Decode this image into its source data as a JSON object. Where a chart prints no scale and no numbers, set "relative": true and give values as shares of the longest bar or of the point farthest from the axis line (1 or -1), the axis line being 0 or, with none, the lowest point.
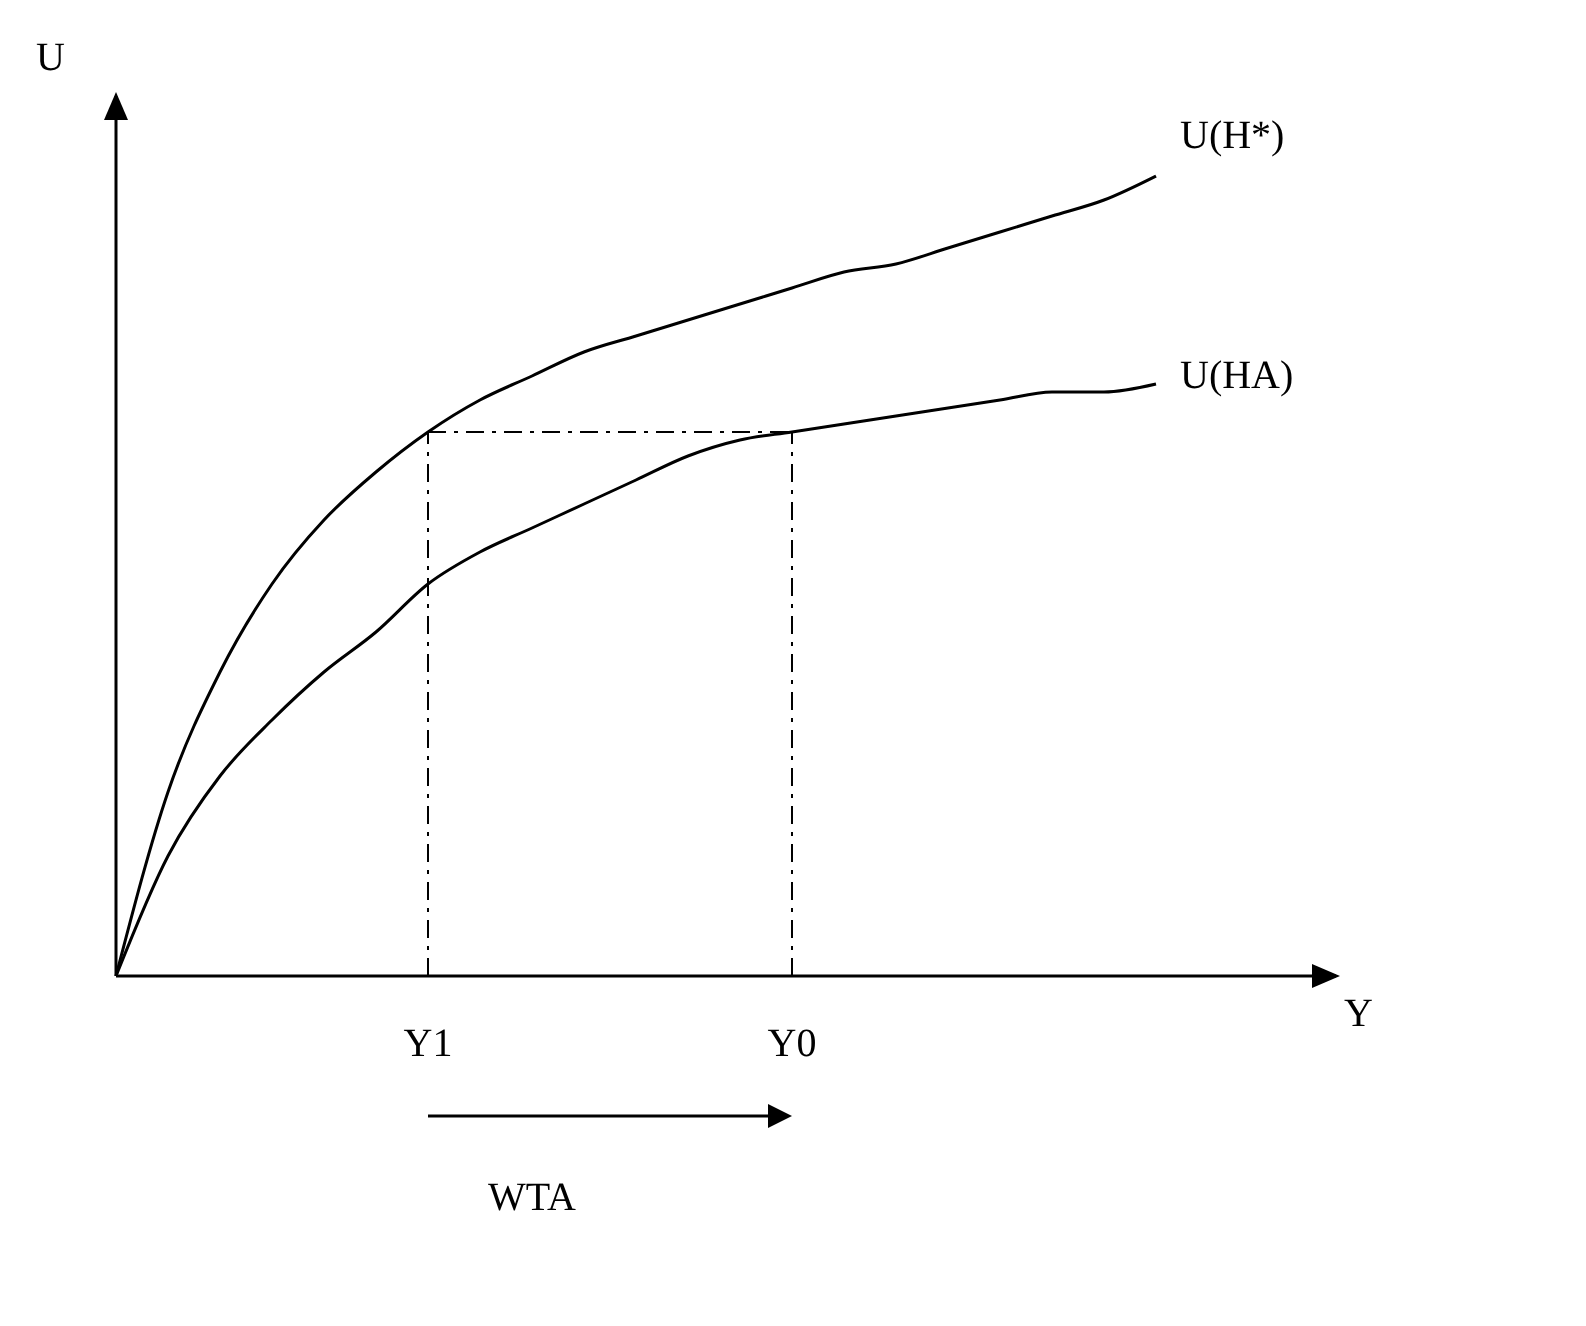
{
  "chart_data": {
    "type": "line",
    "relative": true,
    "xlabel": "Y",
    "ylabel": "U",
    "legend": false,
    "marker": "none",
    "categories": [
      null,
      null,
      null,
      null,
      null,
      null,
      "Y1",
      null,
      null,
      null,
      null,
      null,
      null,
      "Y0",
      null,
      null,
      null,
      null,
      null,
      null,
      null
    ],
    "series": [
      {
        "name": "U(H*)",
        "color": "#000000",
        "values": [
          0,
          0.23,
          0.38,
          0.49,
          0.57,
          0.63,
          0.68,
          0.72,
          0.75,
          0.78,
          0.8,
          0.82,
          0.84,
          0.86,
          0.88,
          0.89,
          0.91,
          0.93,
          0.95,
          0.97,
          1
        ]
      },
      {
        "name": "U(HA)",
        "color": "#000000",
        "values": [
          0,
          0.15,
          0.25,
          0.32,
          0.38,
          0.43,
          0.49,
          0.53,
          0.56,
          0.59,
          0.62,
          0.65,
          0.67,
          0.68,
          0.69,
          0.7,
          0.71,
          0.72,
          0.73,
          0.73,
          0.74
        ]
      }
    ],
    "ref_lines": [
      {
        "axis": "x",
        "value": "Y1",
        "line_style": "dashed",
        "color": "#000000"
      },
      {
        "axis": "x",
        "value": "Y0",
        "line_style": "dashed",
        "color": "#000000"
      },
      {
        "axis": "y",
        "value": 0.68,
        "line_style": "dashed",
        "color": "#000000"
      }
    ],
    "annotations": [
      "WTA"
    ]
  }
}
